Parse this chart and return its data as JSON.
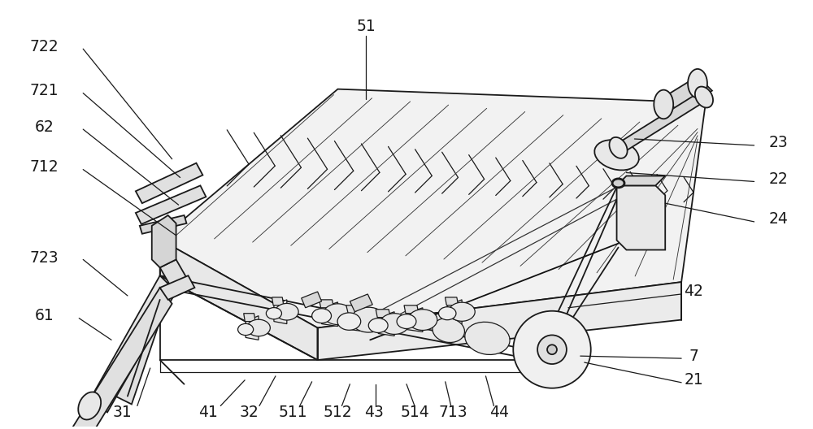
{
  "bg_color": "#ffffff",
  "line_color": "#1a1a1a",
  "label_fontsize": 13.5,
  "figsize": [
    10.0,
    5.28
  ],
  "dpi": 100
}
